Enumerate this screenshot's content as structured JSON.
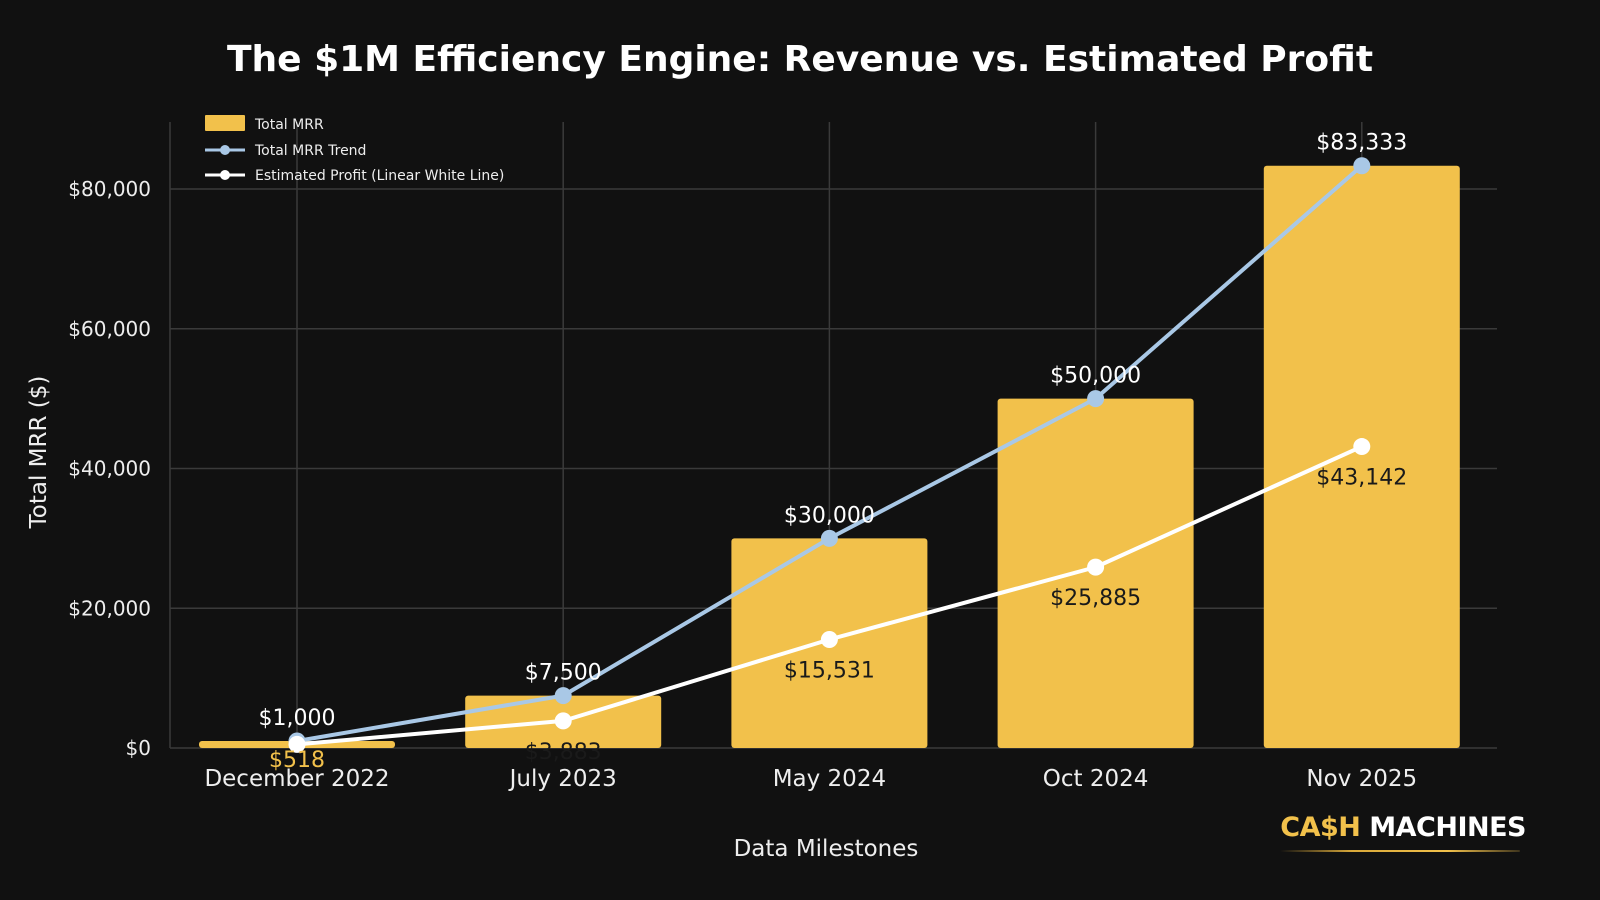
{
  "chart_data": {
    "type": "bar",
    "title": "The $1M Efficiency Engine: Revenue vs. Estimated Profit",
    "xlabel": "Data Milestones",
    "ylabel": "Total MRR ($)",
    "ylim": [
      0,
      85000
    ],
    "yticks": [
      0,
      20000,
      40000,
      60000,
      80000
    ],
    "ytick_labels": [
      "$0",
      "$20,000",
      "$40,000",
      "$60,000",
      "$80,000"
    ],
    "grid": true,
    "legend_position": "top-left",
    "categories": [
      "December 2022",
      "July 2023",
      "May 2024",
      "Oct 2024",
      "Nov 2025"
    ],
    "series": [
      {
        "name": "Total MRR",
        "kind": "bar",
        "color": "#f2c14b",
        "values": [
          1000,
          7500,
          30000,
          50000,
          83333
        ],
        "labels": [
          "$1,000",
          "$7,500",
          "$30,000",
          "$50,000",
          "$83,333"
        ]
      },
      {
        "name": "Total MRR Trend",
        "kind": "line",
        "color": "#a9c8e6",
        "values": [
          1000,
          7500,
          30000,
          50000,
          83333
        ]
      },
      {
        "name": "Estimated Profit (Linear White Line)",
        "kind": "line",
        "color": "#ffffff",
        "values": [
          518,
          3883,
          15531,
          25885,
          43142
        ],
        "labels": [
          "$518",
          "$3,883",
          "$15,531",
          "$25,885",
          "$43,142"
        ]
      }
    ]
  },
  "legend": {
    "items": [
      {
        "label": "Total MRR",
        "icon": "bar-swatch"
      },
      {
        "label": "Total MRR Trend",
        "icon": "line-marker-blue"
      },
      {
        "label": "Estimated Profit (Linear White Line)",
        "icon": "line-marker-white"
      }
    ]
  },
  "branding": {
    "part1": "CA$H",
    "part2": "MACHINES"
  },
  "colors": {
    "background": "#111111",
    "grid": "#3a3a3a",
    "bar": "#f2c14b",
    "trend": "#a9c8e6",
    "profit": "#ffffff"
  }
}
